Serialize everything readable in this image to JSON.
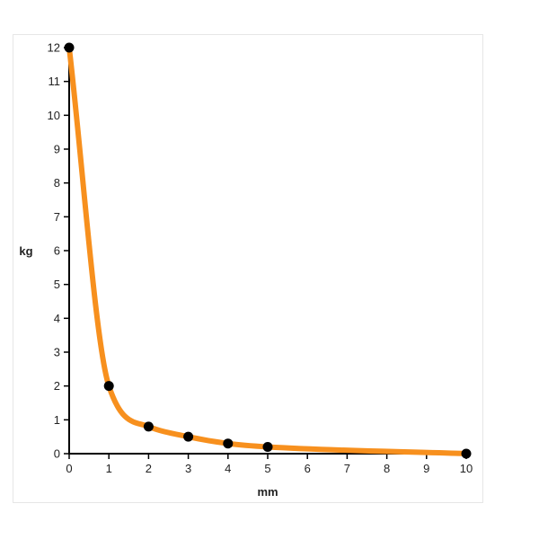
{
  "chart_data": {
    "type": "line",
    "title": "",
    "xlabel": "mm",
    "ylabel": "kg",
    "xlim": [
      0,
      10
    ],
    "ylim": [
      0,
      12
    ],
    "x_ticks": [
      "0",
      "1",
      "2",
      "3",
      "4",
      "5",
      "6",
      "7",
      "8",
      "9",
      "10"
    ],
    "y_ticks": [
      "0",
      "1",
      "2",
      "3",
      "4",
      "5",
      "6",
      "7",
      "8",
      "9",
      "10",
      "11",
      "12"
    ],
    "grid": false,
    "line_color": "#f7901e",
    "point_color": "#000000",
    "points": [
      {
        "x": 0,
        "y": 12
      },
      {
        "x": 1,
        "y": 2
      },
      {
        "x": 2,
        "y": 0.8
      },
      {
        "x": 3,
        "y": 0.5
      },
      {
        "x": 4,
        "y": 0.3
      },
      {
        "x": 5,
        "y": 0.2
      },
      {
        "x": 10,
        "y": 0
      }
    ]
  }
}
